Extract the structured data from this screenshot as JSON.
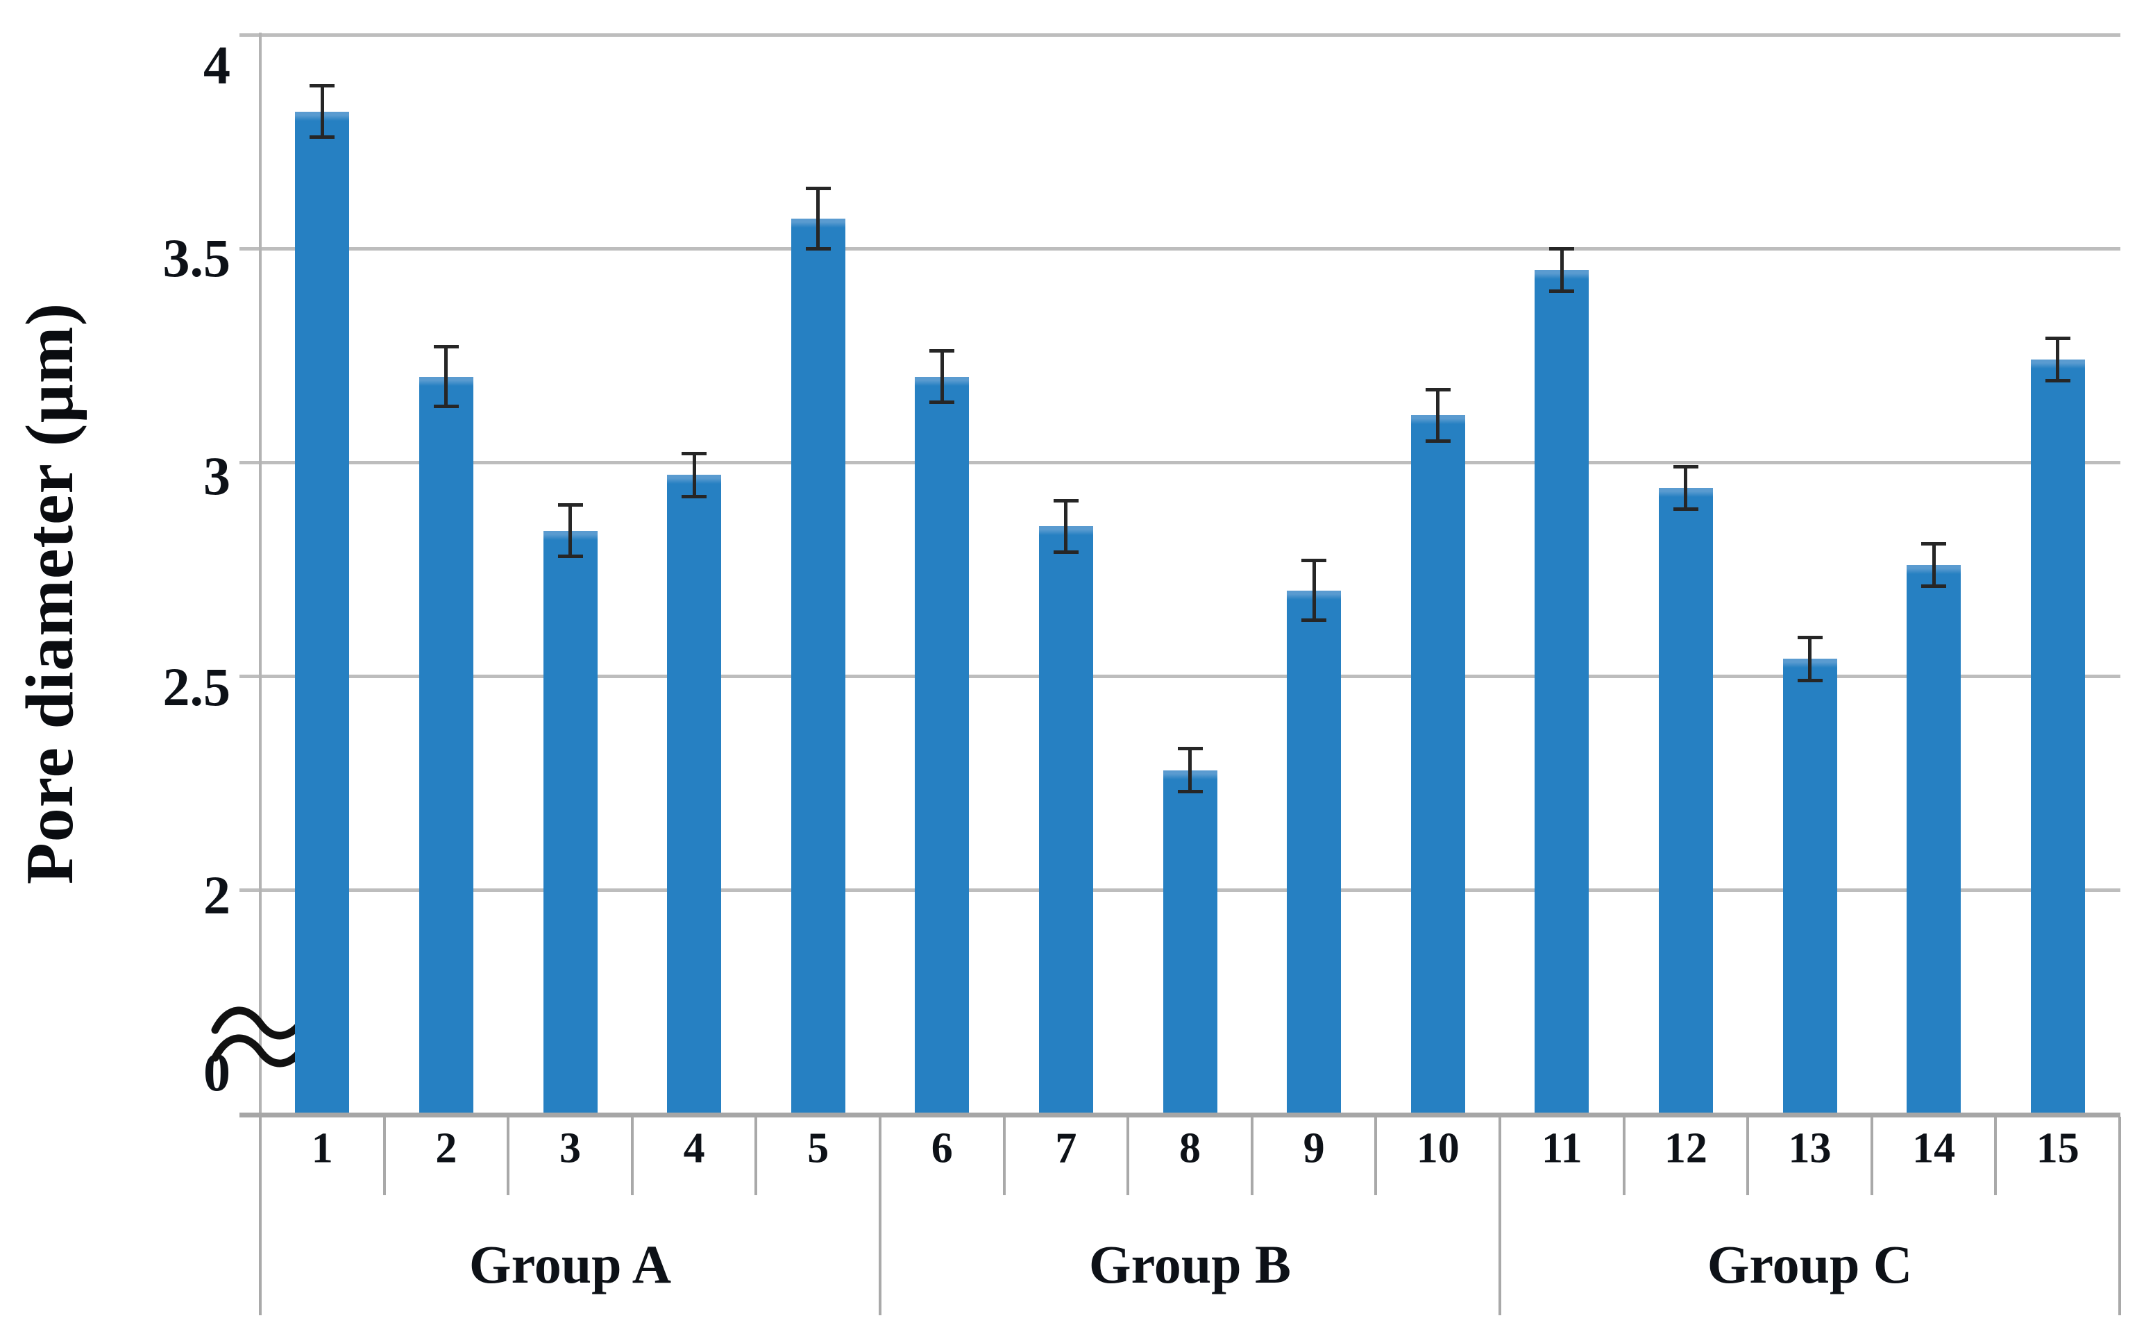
{
  "chart_data": {
    "type": "bar",
    "title": "",
    "xlabel": "",
    "ylabel": "Pore diameter (µm)",
    "y_axis": {
      "tick_labels": [
        "4",
        "3.5",
        "3",
        "2.5",
        "2",
        "0"
      ],
      "tick_values": [
        4,
        3.5,
        3,
        2.5,
        2,
        0
      ],
      "gridlines_at": [
        4,
        3.5,
        3,
        2.5,
        2
      ],
      "axis_break_between": [
        0,
        2
      ],
      "ylim_displayed": [
        2,
        4
      ],
      "grid": true,
      "legend": "none"
    },
    "categories": [
      "1",
      "2",
      "3",
      "4",
      "5",
      "6",
      "7",
      "8",
      "9",
      "10",
      "11",
      "12",
      "13",
      "14",
      "15"
    ],
    "values": [
      3.82,
      3.2,
      2.84,
      2.97,
      3.57,
      3.2,
      2.85,
      2.28,
      2.7,
      3.11,
      3.45,
      2.94,
      2.54,
      2.76,
      3.24
    ],
    "errors": [
      0.06,
      0.07,
      0.06,
      0.05,
      0.07,
      0.06,
      0.06,
      0.05,
      0.07,
      0.06,
      0.05,
      0.05,
      0.05,
      0.05,
      0.05
    ],
    "groups": [
      {
        "label": "Group A",
        "categories": [
          "1",
          "2",
          "3",
          "4",
          "5"
        ]
      },
      {
        "label": "Group B",
        "categories": [
          "6",
          "7",
          "8",
          "9",
          "10"
        ]
      },
      {
        "label": "Group C",
        "categories": [
          "11",
          "12",
          "13",
          "14",
          "15"
        ]
      }
    ],
    "colors": {
      "bar": "#2680C2",
      "bar_highlight": "#5A9BD0",
      "gridline": "#BDBDBD",
      "axis": "#A6A6A6",
      "error_bar": "#262626",
      "text": "#0D1117"
    }
  }
}
